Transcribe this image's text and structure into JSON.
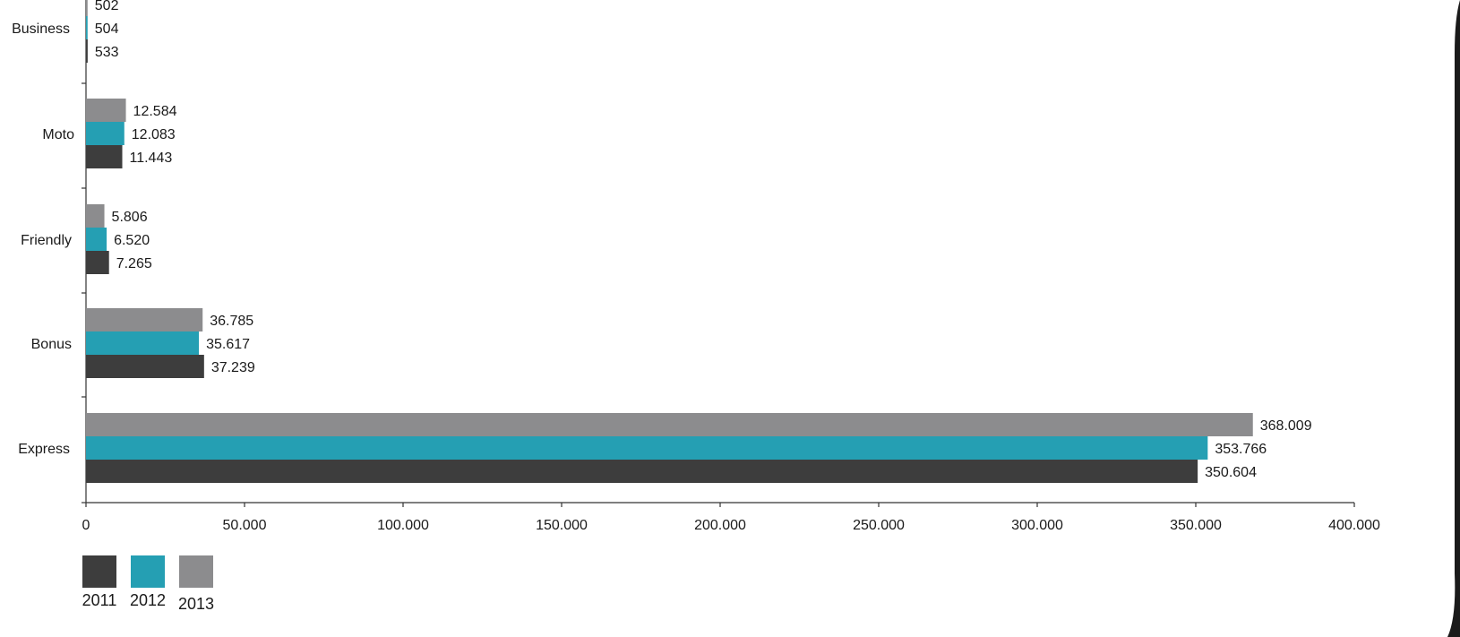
{
  "chart_data": {
    "type": "bar",
    "orientation": "horizontal",
    "title": "",
    "xlabel": "",
    "ylabel": "",
    "categories": [
      "Business",
      "Moto",
      "Friendly",
      "Bonus",
      "Express"
    ],
    "series": [
      {
        "name": "2011",
        "color": "#3d3d3d",
        "values": [
          533,
          11443,
          7265,
          37239,
          350604
        ],
        "labels": [
          "533",
          "11.443",
          "7.265",
          "37.239",
          "350.604"
        ]
      },
      {
        "name": "2012",
        "color": "#259fb3",
        "values": [
          504,
          12083,
          6520,
          35617,
          353766
        ],
        "labels": [
          "504",
          "12.083",
          "6.520",
          "35.617",
          "353.766"
        ]
      },
      {
        "name": "2013",
        "color": "#8c8c8e",
        "values": [
          502,
          12584,
          5806,
          36785,
          368009
        ],
        "labels": [
          "502",
          "12.584",
          "5.806",
          "36.785",
          "368.009"
        ]
      }
    ],
    "xlim": [
      0,
      400000
    ],
    "xticks": [
      0,
      50000,
      100000,
      150000,
      200000,
      250000,
      300000,
      350000,
      400000
    ],
    "xtick_labels": [
      "0",
      "50.000",
      "100.000",
      "150.000",
      "200.000",
      "250.000",
      "300.000",
      "350.000",
      "400.000"
    ],
    "grid": false,
    "legend_position": "bottom-left"
  },
  "colors": {
    "accent_dark": "#1a1a1a"
  }
}
